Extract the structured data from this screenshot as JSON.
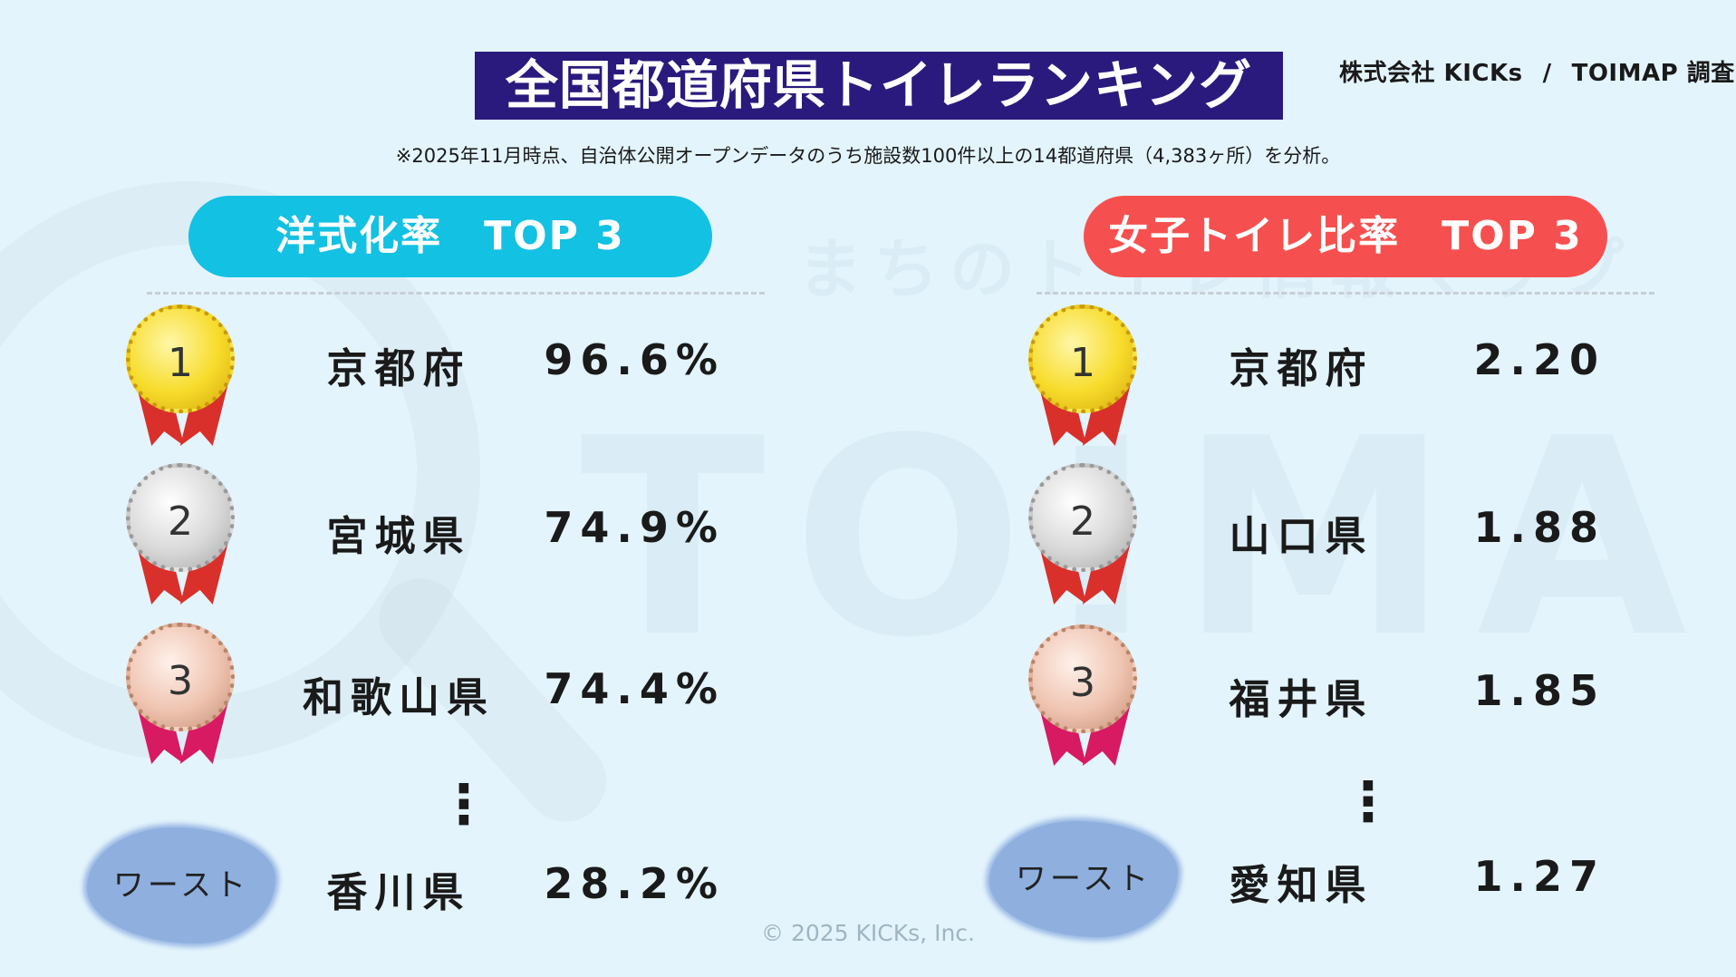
{
  "watermark": {
    "logo": "TOIMAP",
    "tagline": "まちのトイレ情報マップ",
    "icon": "magnifier-icon"
  },
  "header": {
    "title": "全国都道府県トイレランキング",
    "company": "株式会社 KICKs",
    "separator": "/",
    "survey": "TOIMAP 調査",
    "note": "※2025年11月時点、自治体公開オープンデータのうち施設数100件以上の14都道府県（4,383ヶ所）を分析。"
  },
  "left": {
    "heading": "洋式化率　TOP 3",
    "color": "#13c1e3",
    "ranks": [
      {
        "rank": "1",
        "medal": "gold",
        "prefecture": "京都府",
        "value": "96.6%"
      },
      {
        "rank": "2",
        "medal": "silver",
        "prefecture": "宮城県",
        "value": "74.9%"
      },
      {
        "rank": "3",
        "medal": "bronze",
        "prefecture": "和歌山県",
        "value": "74.4%"
      }
    ],
    "ellipsis": "⋮",
    "worst": {
      "label": "ワースト",
      "prefecture": "香川県",
      "value": "28.2%"
    }
  },
  "right": {
    "heading": "女子トイレ比率　TOP 3",
    "color": "#f5504f",
    "ranks": [
      {
        "rank": "1",
        "medal": "gold",
        "prefecture": "京都府",
        "value": "2.20"
      },
      {
        "rank": "2",
        "medal": "silver",
        "prefecture": "山口県",
        "value": "1.88"
      },
      {
        "rank": "3",
        "medal": "bronze",
        "prefecture": "福井県",
        "value": "1.85"
      }
    ],
    "ellipsis": "⋮",
    "worst": {
      "label": "ワースト",
      "prefecture": "愛知県",
      "value": "1.27"
    }
  },
  "footer": {
    "copyright": "© 2025 KICKs, Inc."
  }
}
